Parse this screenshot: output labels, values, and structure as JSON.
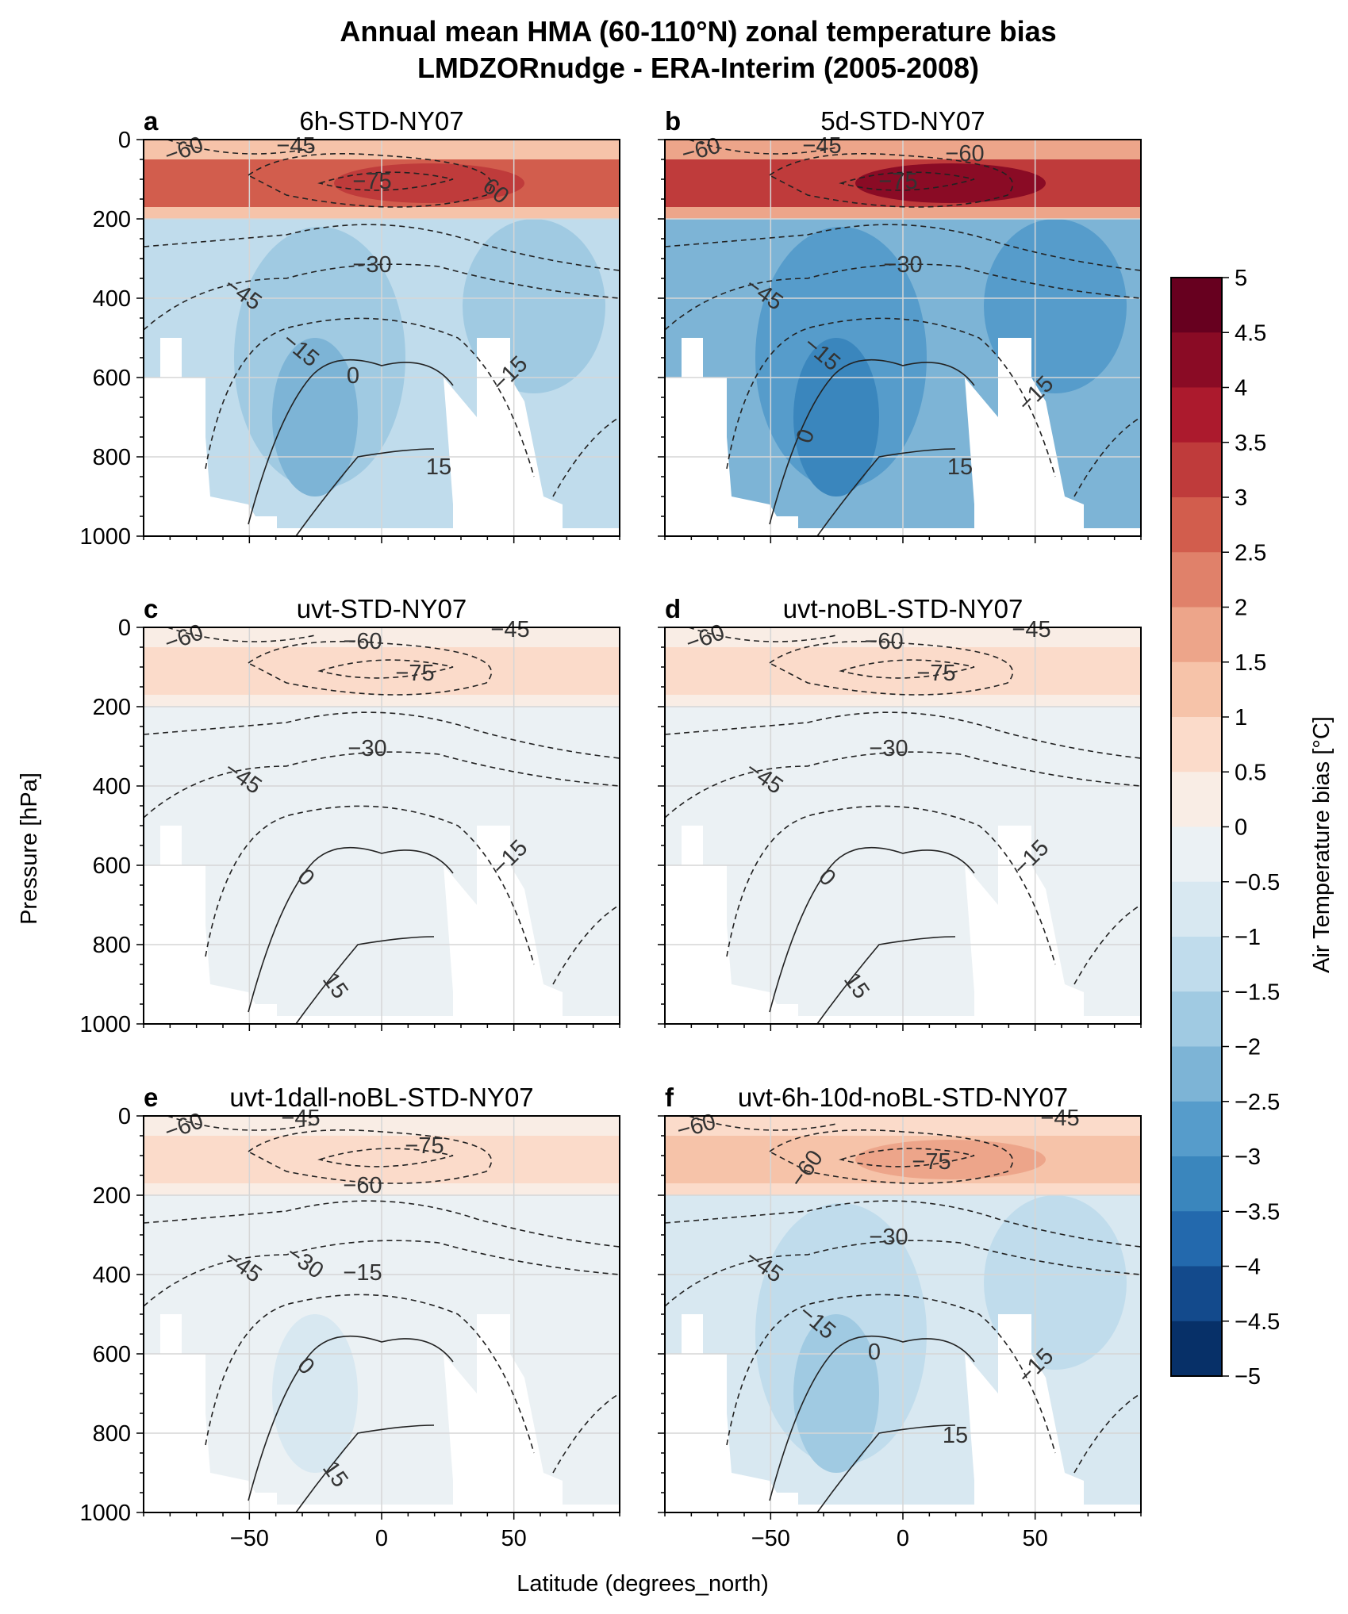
{
  "figure": {
    "title_line1": "Annual mean HMA (60-110°N) zonal temperature bias",
    "title_line2": "LMDZORnudge - ERA-Interim (2005-2008)",
    "xlabel": "Latitude (degrees_north)",
    "ylabel": "Pressure [hPa]"
  },
  "colorbar": {
    "label": "Air Temperature bias [°C]",
    "ticks": [
      "5",
      "4.5",
      "4",
      "3.5",
      "3",
      "2.5",
      "2",
      "1.5",
      "1",
      "0.5",
      "0",
      "−0.5",
      "−1",
      "−1.5",
      "−2",
      "−2.5",
      "−3",
      "−3.5",
      "−4",
      "−4.5",
      "−5"
    ],
    "colors": [
      "#67001f",
      "#8a0b25",
      "#ac1a2d",
      "#bf3b3b",
      "#d25d4d",
      "#e0816a",
      "#eda58a",
      "#f6c3a9",
      "#fbdbca",
      "#f9ede5",
      "#ebf1f4",
      "#d8e8f1",
      "#c0dcec",
      "#a0cae2",
      "#7db4d6",
      "#569ccb",
      "#3a86bd",
      "#2369ad",
      "#134a8c",
      "#073068"
    ]
  },
  "axes": {
    "yticks": [
      "0",
      "200",
      "400",
      "600",
      "800",
      "1000"
    ],
    "xticks": [
      "−50",
      "0",
      "50"
    ]
  },
  "chart_data": {
    "type": "heatmap",
    "x_range": [
      -90,
      90
    ],
    "y_range": [
      1000,
      0
    ],
    "y_scale": "linear, inverted",
    "grid": true,
    "contour_lines": "zonal mean temperature (°C), dashed negative, solid non-negative",
    "panels": [
      {
        "letter": "a",
        "title": "6h-STD-NY07",
        "strat": 3.5,
        "trop": -1.2,
        "deep": -2.4,
        "contour_labels": [
          "-60",
          "-45",
          "-75",
          "60",
          "-30",
          "-45",
          "-15",
          "0",
          "-15",
          "15"
        ]
      },
      {
        "letter": "b",
        "title": "5d-STD-NY07",
        "strat": 4.2,
        "trop": -2.1,
        "deep": -3.2,
        "contour_labels": [
          "-60",
          "-45",
          "-60",
          "-75",
          "-30",
          "-45",
          "-15",
          "0",
          "-15",
          "15"
        ]
      },
      {
        "letter": "c",
        "title": "uvt-STD-NY07",
        "strat": 0.8,
        "trop": -0.1,
        "deep": -0.3,
        "contour_labels": [
          "-60",
          "-60",
          "-45",
          "-75",
          "-30",
          "-45",
          "0",
          "-15",
          "15"
        ]
      },
      {
        "letter": "d",
        "title": "uvt-noBL-STD-NY07",
        "strat": 0.8,
        "trop": -0.1,
        "deep": -0.3,
        "contour_labels": [
          "-60",
          "-60",
          "-45",
          "-75",
          "-30",
          "-45",
          "0",
          "-15",
          "15"
        ]
      },
      {
        "letter": "e",
        "title": "uvt-1dall-noBL-STD-NY07",
        "strat": 0.9,
        "trop": -0.2,
        "deep": -0.7,
        "contour_labels": [
          "-60",
          "-45",
          "-75",
          "-60",
          "-45",
          "-30",
          "-15",
          "0",
          "15"
        ]
      },
      {
        "letter": "f",
        "title": "uvt-6h-10d-noBL-STD-NY07",
        "strat": 1.6,
        "trop": -0.8,
        "deep": -1.8,
        "contour_labels": [
          "-60",
          "-45",
          "-60",
          "-75",
          "-30",
          "-45",
          "-15",
          "0",
          "-15",
          "15"
        ]
      }
    ]
  }
}
